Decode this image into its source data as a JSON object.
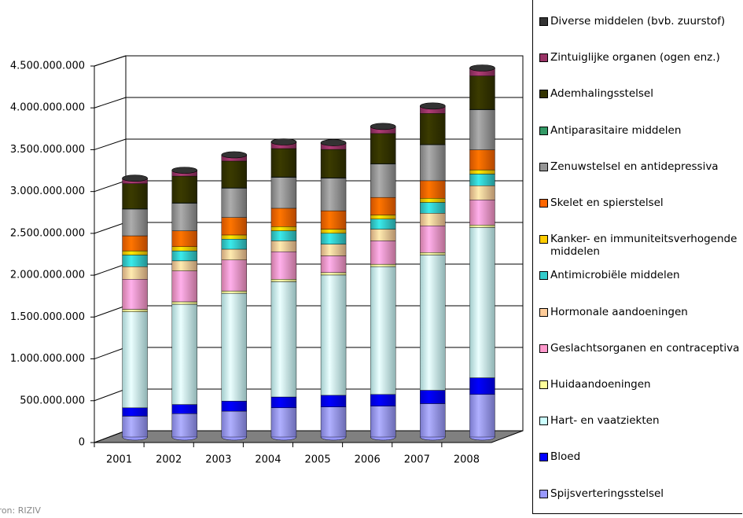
{
  "chart_data": {
    "type": "bar",
    "stacked": true,
    "categories": [
      "2001",
      "2002",
      "2003",
      "2004",
      "2005",
      "2006",
      "2007",
      "2008"
    ],
    "ylim": [
      0,
      4500000000
    ],
    "yticks": [
      0,
      {
        "value": 500000000,
        "label": "500.000.000"
      },
      {
        "value": 1000000000,
        "label": "1.000.000.000"
      },
      {
        "value": 1500000000,
        "label": "1.500.000.000"
      },
      {
        "value": 2000000000,
        "label": "2.000.000.000"
      },
      {
        "value": 2500000000,
        "label": "2.500.000.000"
      },
      {
        "value": 3000000000,
        "label": "3.000.000.000"
      },
      {
        "value": 3500000000,
        "label": "3.500.000.000"
      },
      {
        "value": 4000000000,
        "label": "4.000.000.000"
      },
      {
        "value": 4500000000,
        "label": "4.500.000.000"
      }
    ],
    "grid": true,
    "source": "Bron: RIZIV",
    "series": [
      {
        "name": "Spijsverteringsstelsel",
        "color": "#9999ff",
        "values": [
          250000000,
          280000000,
          310000000,
          350000000,
          360000000,
          370000000,
          400000000,
          510000000
        ]
      },
      {
        "name": "Bloed",
        "color": "#0000ff",
        "values": [
          100000000,
          110000000,
          120000000,
          130000000,
          140000000,
          140000000,
          160000000,
          200000000
        ]
      },
      {
        "name": "Hart- en vaatziekten",
        "color": "#ccffff",
        "values": [
          1150000000,
          1200000000,
          1290000000,
          1380000000,
          1440000000,
          1530000000,
          1620000000,
          1800000000
        ]
      },
      {
        "name": "Huidaandoeningen",
        "color": "#ffff99",
        "values": [
          30000000,
          30000000,
          30000000,
          30000000,
          30000000,
          30000000,
          30000000,
          30000000
        ]
      },
      {
        "name": "Geslachtsorganen en contraceptiva",
        "color": "#ff99cc",
        "values": [
          360000000,
          370000000,
          370000000,
          330000000,
          200000000,
          280000000,
          320000000,
          300000000
        ]
      },
      {
        "name": "Hormonale aandoeningen",
        "color": "#ffcc99",
        "values": [
          150000000,
          120000000,
          130000000,
          130000000,
          140000000,
          140000000,
          150000000,
          170000000
        ]
      },
      {
        "name": "Antimicrobiële middelen",
        "color": "#33cccc",
        "values": [
          140000000,
          120000000,
          120000000,
          120000000,
          130000000,
          120000000,
          130000000,
          140000000
        ]
      },
      {
        "name": "Kanker- en immuniteitsverhogende middelen",
        "color": "#ffcc00",
        "values": [
          50000000,
          50000000,
          50000000,
          50000000,
          50000000,
          50000000,
          50000000,
          50000000
        ]
      },
      {
        "name": "Skelet en spierstelsel",
        "color": "#ff6600",
        "values": [
          180000000,
          190000000,
          210000000,
          220000000,
          220000000,
          210000000,
          210000000,
          240000000
        ]
      },
      {
        "name": "Zenuwstelsel en antidepressiva",
        "color": "#969696",
        "values": [
          320000000,
          330000000,
          350000000,
          370000000,
          390000000,
          400000000,
          430000000,
          480000000
        ]
      },
      {
        "name": "Antiparasitaire middelen",
        "color": "#339966",
        "values": [
          5000000,
          5000000,
          5000000,
          5000000,
          5000000,
          5000000,
          5000000,
          5000000
        ]
      },
      {
        "name": "Ademhalingsstelsel",
        "color": "#333300",
        "values": [
          300000000,
          320000000,
          320000000,
          340000000,
          340000000,
          360000000,
          370000000,
          400000000
        ]
      },
      {
        "name": "Zintuiglijke organen (ogen enz.)",
        "color": "#993366",
        "values": [
          55000000,
          60000000,
          65000000,
          70000000,
          70000000,
          75000000,
          80000000,
          85000000
        ]
      },
      {
        "name": "Diverse middelen (bvb. zuurstof)",
        "color": "#333333",
        "values": [
          10000000,
          10000000,
          10000000,
          10000000,
          10000000,
          10000000,
          10000000,
          10000000
        ]
      }
    ]
  }
}
